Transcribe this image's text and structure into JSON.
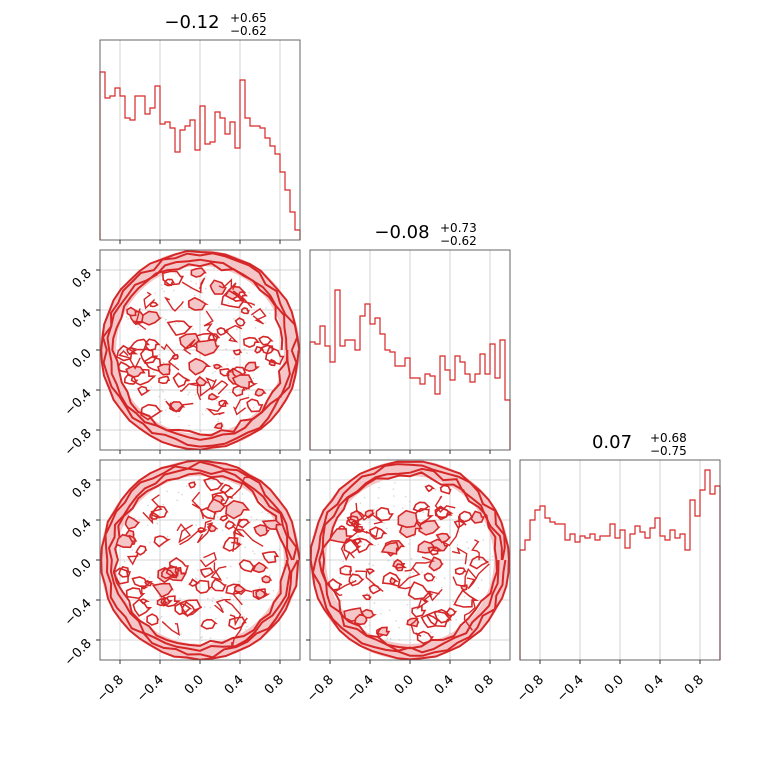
{
  "chart_data": {
    "type": "corner",
    "color": "#d62728",
    "fill_color": "#f4c6c7",
    "grid": true,
    "axis_ticks": [
      "−0.8",
      "−0.4",
      "0.0",
      "0.4",
      "0.8"
    ],
    "tick_values": [
      -0.8,
      -0.4,
      0.0,
      0.4,
      0.8
    ],
    "range": [
      -1.0,
      1.0
    ],
    "diagonal_titles": [
      {
        "base": "−0.12",
        "plus": "+0.65",
        "minus": "−0.62"
      },
      {
        "base": "−0.08",
        "plus": "+0.73",
        "minus": "−0.62"
      },
      {
        "base": "0.07",
        "plus": "+0.68",
        "minus": "−0.75"
      }
    ],
    "histograms": [
      {
        "bins": 40,
        "values": [
          0.84,
          0.71,
          0.72,
          0.76,
          0.72,
          0.61,
          0.6,
          0.72,
          0.72,
          0.63,
          0.66,
          0.77,
          0.58,
          0.59,
          0.56,
          0.44,
          0.55,
          0.57,
          0.6,
          0.45,
          0.67,
          0.48,
          0.49,
          0.64,
          0.61,
          0.53,
          0.59,
          0.46,
          0.8,
          0.61,
          0.57,
          0.57,
          0.56,
          0.51,
          0.47,
          0.43,
          0.34,
          0.25,
          0.14,
          0.05
        ]
      },
      {
        "bins": 40,
        "values": [
          0.54,
          0.53,
          0.62,
          0.52,
          0.44,
          0.8,
          0.52,
          0.55,
          0.55,
          0.5,
          0.67,
          0.73,
          0.63,
          0.66,
          0.58,
          0.5,
          0.49,
          0.42,
          0.42,
          0.46,
          0.36,
          0.36,
          0.33,
          0.38,
          0.37,
          0.28,
          0.47,
          0.4,
          0.35,
          0.47,
          0.44,
          0.38,
          0.34,
          0.38,
          0.48,
          0.38,
          0.53,
          0.36,
          0.55,
          0.25
        ]
      },
      {
        "bins": 40,
        "values": [
          0.55,
          0.6,
          0.7,
          0.75,
          0.77,
          0.71,
          0.69,
          0.68,
          0.68,
          0.6,
          0.63,
          0.59,
          0.62,
          0.61,
          0.63,
          0.6,
          0.62,
          0.62,
          0.68,
          0.61,
          0.65,
          0.56,
          0.63,
          0.67,
          0.64,
          0.61,
          0.66,
          0.71,
          0.62,
          0.6,
          0.65,
          0.61,
          0.63,
          0.55,
          0.8,
          0.72,
          0.85,
          0.95,
          0.83,
          0.87
        ]
      }
    ],
    "panels": [
      {
        "row": 0,
        "col": 0,
        "kind": "hist",
        "x_ticks": false,
        "y_ticks": false
      },
      {
        "row": 1,
        "col": 0,
        "kind": "2d",
        "x_ticks": false,
        "y_ticks": true
      },
      {
        "row": 1,
        "col": 1,
        "kind": "hist",
        "x_ticks": false,
        "y_ticks": false
      },
      {
        "row": 2,
        "col": 0,
        "kind": "2d",
        "x_ticks": true,
        "y_ticks": true
      },
      {
        "row": 2,
        "col": 1,
        "kind": "2d",
        "x_ticks": true,
        "y_ticks": false
      },
      {
        "row": 2,
        "col": 2,
        "kind": "hist",
        "x_ticks": true,
        "y_ticks": false
      }
    ]
  }
}
